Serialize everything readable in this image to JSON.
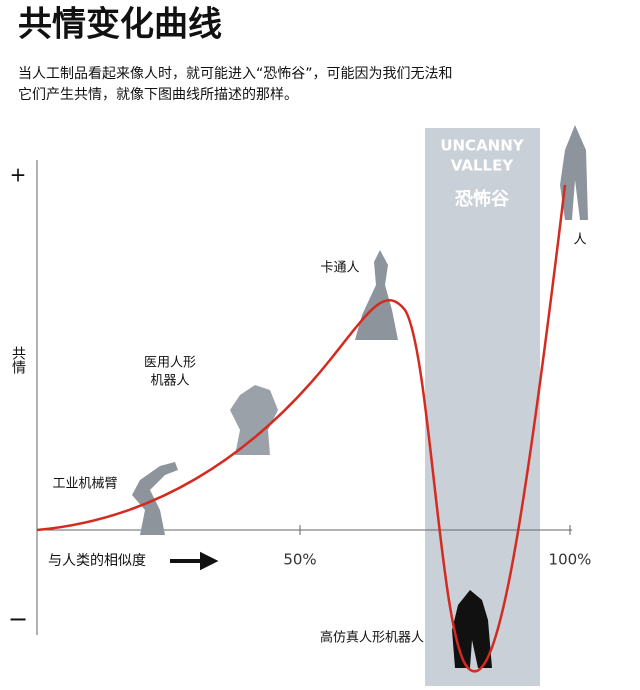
{
  "header": {
    "title": "共情变化曲线",
    "subtitle": [
      "当人工制品看起来像人时，就可能进入“恐怖谷”，可能因为我们无法和",
      "它们产生共情，就像下图曲线所描述的那样。"
    ]
  },
  "axes": {
    "y_label": "共情",
    "y_top": "+",
    "y_bottom": "−",
    "x_label": "与人类的相似度",
    "x_ticks": [
      "50%",
      "100%"
    ]
  },
  "valley": {
    "title_en": [
      "UNCANNY",
      "VALLEY"
    ],
    "title_zh": "恐怖谷"
  },
  "points": [
    {
      "label": [
        "工业机械臂"
      ]
    },
    {
      "label": [
        "医用人形",
        "机器人"
      ]
    },
    {
      "label": [
        "卡通人"
      ]
    },
    {
      "label": [
        "高仿真人形机器人"
      ]
    },
    {
      "label": [
        "人"
      ]
    }
  ]
}
